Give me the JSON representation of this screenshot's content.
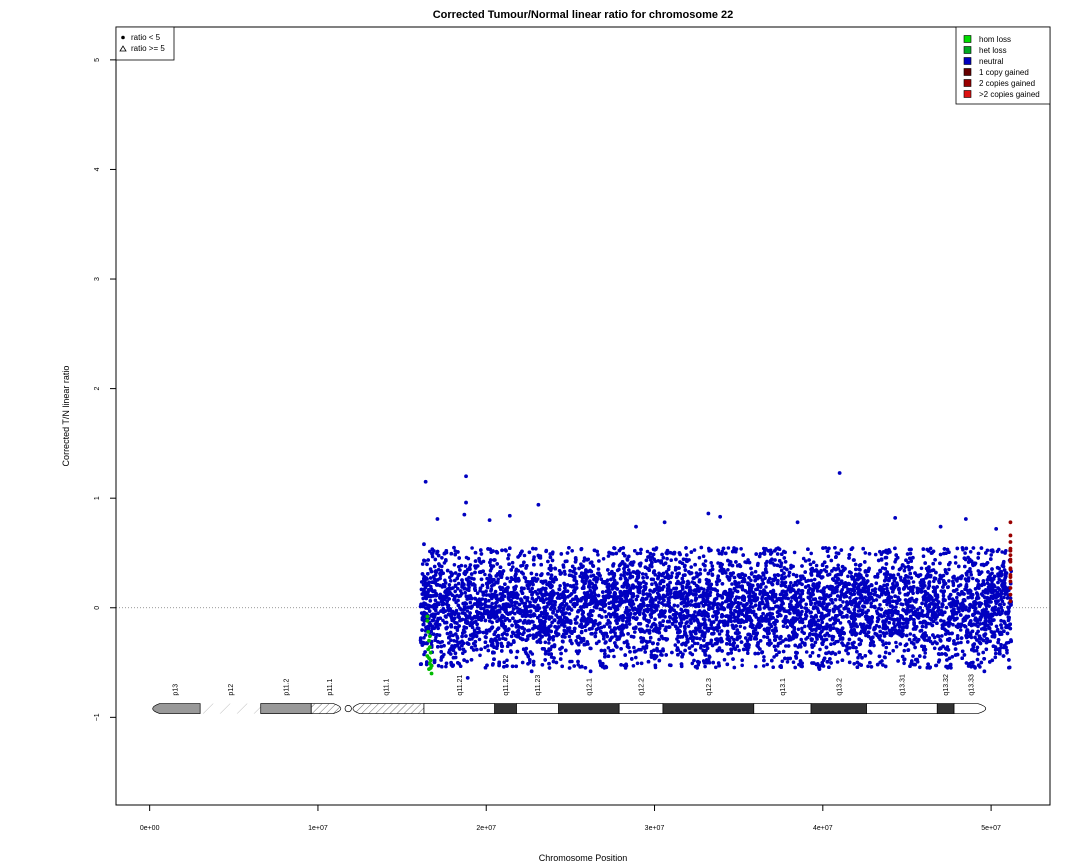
{
  "chart_data": {
    "type": "scatter",
    "title": "Corrected Tumour/Normal linear ratio for chromosome  22",
    "xlabel": "Chromosome Position",
    "ylabel": "Corrected T/N linear ratio",
    "xlim": [
      -2000000,
      53500000
    ],
    "ylim": [
      -1.8,
      5.3
    ],
    "x_ticks": [
      0,
      10000000,
      20000000,
      30000000,
      40000000,
      50000000
    ],
    "x_tick_labels": [
      "0e+00",
      "1e+07",
      "2e+07",
      "3e+07",
      "4e+07",
      "5e+07"
    ],
    "y_ticks": [
      -1,
      0,
      1,
      2,
      3,
      4,
      5
    ],
    "y_tick_labels": [
      "−1",
      "0",
      "1",
      "2",
      "3",
      "4",
      "5"
    ],
    "reference_line_y": 0,
    "data_range": {
      "x_start": 16100000,
      "x_end": 51200000
    },
    "bulk_spread": {
      "neutral_min": -0.55,
      "neutral_max": 0.55
    },
    "series": [
      {
        "key": "neutral",
        "color": "#0000c0",
        "points": [
          [
            16400000,
            1.15
          ],
          [
            18800000,
            1.2
          ],
          [
            18800000,
            0.96
          ],
          [
            23100000,
            0.94
          ],
          [
            41000000,
            1.23
          ],
          [
            21400000,
            0.84
          ],
          [
            28900000,
            0.74
          ],
          [
            33200000,
            0.86
          ],
          [
            33900000,
            0.83
          ],
          [
            44300000,
            0.82
          ],
          [
            48500000,
            0.81
          ],
          [
            38500000,
            0.78
          ],
          [
            17100000,
            0.81
          ],
          [
            47000000,
            0.74
          ],
          [
            50300000,
            0.72
          ],
          [
            20200000,
            0.8
          ],
          [
            18700000,
            0.85
          ],
          [
            30600000,
            0.78
          ],
          [
            26200000,
            -0.58
          ],
          [
            18900000,
            -0.64
          ],
          [
            22700000,
            -0.58
          ],
          [
            39800000,
            -0.56
          ],
          [
            49600000,
            -0.58
          ],
          [
            16300000,
            0.58
          ]
        ]
      },
      {
        "key": "het-loss",
        "color": "#00bb00",
        "points": [
          [
            16500000,
            -0.12
          ],
          [
            16550000,
            -0.22
          ],
          [
            16600000,
            -0.3
          ],
          [
            16650000,
            -0.36
          ],
          [
            16700000,
            -0.41
          ],
          [
            16600000,
            -0.46
          ],
          [
            16650000,
            -0.51
          ],
          [
            16700000,
            -0.55
          ],
          [
            16750000,
            -0.6
          ],
          [
            16550000,
            -0.38
          ],
          [
            16500000,
            -0.44
          ],
          [
            16700000,
            -0.48
          ],
          [
            16750000,
            -0.53
          ],
          [
            16600000,
            -0.56
          ],
          [
            16500000,
            -0.08
          ],
          [
            16650000,
            -0.26
          ]
        ]
      },
      {
        "key": "gain",
        "color": "#990000",
        "points": [
          [
            51150000,
            0.78
          ],
          [
            51150000,
            0.66
          ],
          [
            51150000,
            0.6
          ],
          [
            51150000,
            0.54
          ],
          [
            51150000,
            0.48
          ],
          [
            51150000,
            0.42
          ],
          [
            51150000,
            0.36
          ],
          [
            51150000,
            0.3
          ],
          [
            51150000,
            0.24
          ],
          [
            51150000,
            0.18
          ],
          [
            51150000,
            0.12
          ],
          [
            51150000,
            0.06
          ],
          [
            51150000,
            0.28
          ],
          [
            51150000,
            0.44
          ],
          [
            51150000,
            0.52
          ],
          [
            51150000,
            0.35
          ]
        ]
      }
    ],
    "legend_shape": {
      "position": "top-left",
      "entries": [
        {
          "label": "ratio < 5",
          "marker": "filled-circle"
        },
        {
          "label": "ratio >= 5",
          "marker": "open-triangle"
        }
      ]
    },
    "legend_cnv": {
      "position": "top-right",
      "entries": [
        {
          "label": "hom loss",
          "color": "#00dd00"
        },
        {
          "label": "het loss",
          "color": "#00aa22"
        },
        {
          "label": "neutral",
          "color": "#0000c0"
        },
        {
          "label": "1 copy gained",
          "color": "#660000"
        },
        {
          "label": "2 copies gained",
          "color": "#990000"
        },
        {
          "label": ">2 copies gained",
          "color": "#dd1111"
        }
      ]
    },
    "ideogram": {
      "y": -0.92,
      "bands": [
        {
          "name": "p13",
          "start": 0,
          "end": 3000000,
          "stain": "acen-grey"
        },
        {
          "name": "p12",
          "start": 3000000,
          "end": 6600000,
          "stain": "stalk"
        },
        {
          "name": "p11.2",
          "start": 6600000,
          "end": 9600000,
          "stain": "grey"
        },
        {
          "name": "p11.1",
          "start": 9600000,
          "end": 11800000,
          "stain": "hatch"
        },
        {
          "name": "q11.1",
          "start": 11800000,
          "end": 16300000,
          "stain": "hatch"
        },
        {
          "name": "q11.21",
          "start": 16300000,
          "end": 20500000,
          "stain": "white"
        },
        {
          "name": "q11.22",
          "start": 20500000,
          "end": 21800000,
          "stain": "black"
        },
        {
          "name": "q11.23",
          "start": 21800000,
          "end": 24300000,
          "stain": "white"
        },
        {
          "name": "q12.1",
          "start": 24300000,
          "end": 27900000,
          "stain": "black"
        },
        {
          "name": "q12.2",
          "start": 27900000,
          "end": 30500000,
          "stain": "white"
        },
        {
          "name": "q12.3",
          "start": 30500000,
          "end": 35900000,
          "stain": "black"
        },
        {
          "name": "q13.1",
          "start": 35900000,
          "end": 39300000,
          "stain": "white"
        },
        {
          "name": "q13.2",
          "start": 39300000,
          "end": 42600000,
          "stain": "black"
        },
        {
          "name": "q13.31",
          "start": 42600000,
          "end": 46800000,
          "stain": "white"
        },
        {
          "name": "q13.32",
          "start": 46800000,
          "end": 47800000,
          "stain": "black"
        },
        {
          "name": "q13.33",
          "start": 47800000,
          "end": 49800000,
          "stain": "white"
        }
      ]
    }
  }
}
